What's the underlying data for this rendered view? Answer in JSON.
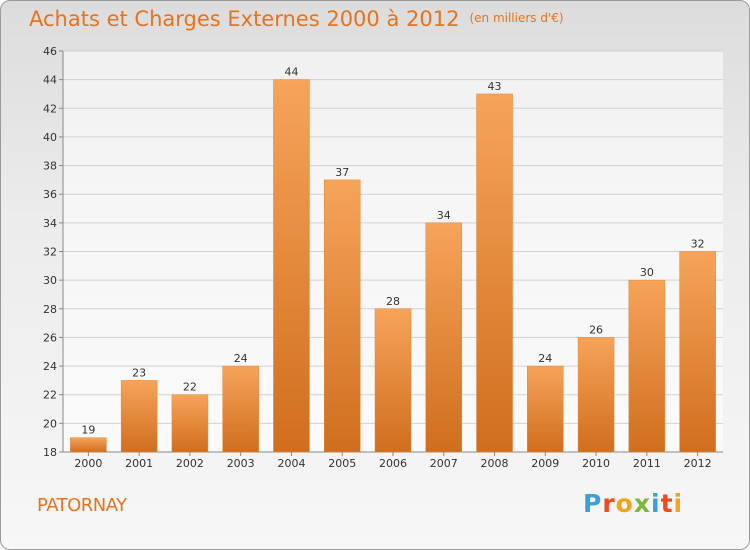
{
  "header": {
    "title": "Achats et Charges Externes 2000 à 2012",
    "unit": "(en milliers d'€)"
  },
  "footer": {
    "commune": "PATORNAY",
    "logo": [
      "P",
      "r",
      "o",
      "x",
      "i",
      "t",
      "i"
    ]
  },
  "colors": {
    "accent": "#e8731e",
    "bar_light": "#f6a45a",
    "bar_dark": "#d06e1e",
    "logo": [
      "#3aa0dc",
      "#e94e1b",
      "#f0a51d",
      "#7cb83b",
      "#3aa0dc",
      "#e94e1b",
      "#f0a51d"
    ]
  },
  "chart_data": {
    "type": "bar",
    "title": "Achats et Charges Externes 2000 à 2012",
    "subtitle": "(en milliers d'€)",
    "categories": [
      "2000",
      "2001",
      "2002",
      "2003",
      "2004",
      "2005",
      "2006",
      "2007",
      "2008",
      "2009",
      "2010",
      "2011",
      "2012"
    ],
    "values": [
      19,
      23,
      22,
      24,
      44,
      37,
      28,
      34,
      43,
      24,
      26,
      30,
      32
    ],
    "ylim": [
      18,
      46
    ],
    "yticks": [
      18,
      20,
      22,
      24,
      26,
      28,
      30,
      32,
      34,
      36,
      38,
      40,
      42,
      44,
      46
    ],
    "grid": true,
    "data_labels": true
  }
}
